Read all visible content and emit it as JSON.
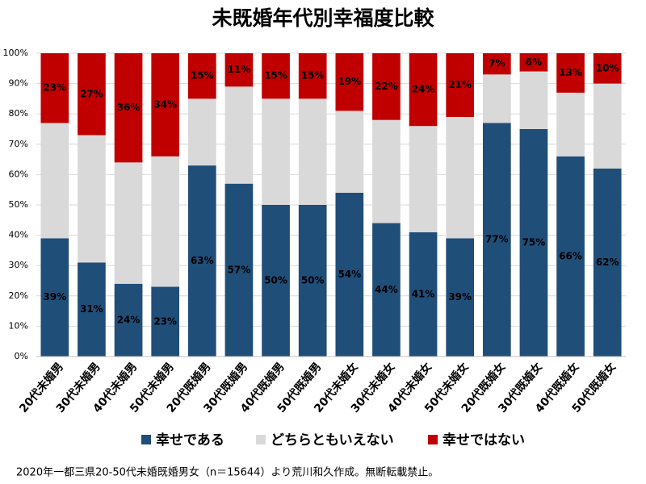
{
  "chart_data": {
    "type": "stacked_bar_percent",
    "title": "未既婚年代別幸福度比較",
    "categories": [
      "20代未婚男",
      "30代未婚男",
      "40代未婚男",
      "50代未婚男",
      "20代既婚男",
      "30代既婚男",
      "40代既婚男",
      "50代既婚男",
      "20代未婚女",
      "30代未婚女",
      "40代未婚女",
      "50代未婚女",
      "20代既婚女",
      "30代既婚女",
      "40代既婚女",
      "50代既婚女"
    ],
    "series": [
      {
        "name": "幸せである",
        "color": "#1f4e79",
        "values": [
          39,
          31,
          24,
          23,
          63,
          57,
          50,
          50,
          54,
          44,
          41,
          39,
          77,
          75,
          66,
          62
        ],
        "value_labels": [
          "39%",
          "31%",
          "24%",
          "23%",
          "63%",
          "57%",
          "50%",
          "50%",
          "54%",
          "44%",
          "41%",
          "39%",
          "77%",
          "75%",
          "66%",
          "62%"
        ]
      },
      {
        "name": "どちらともいえない",
        "color": "#d9d9d9",
        "values": [
          38,
          42,
          40,
          43,
          22,
          32,
          35,
          35,
          27,
          34,
          35,
          40,
          16,
          19,
          21,
          28
        ]
      },
      {
        "name": "幸せではない",
        "color": "#c00000",
        "values": [
          23,
          27,
          36,
          34,
          15,
          11,
          15,
          15,
          19,
          22,
          24,
          21,
          7,
          6,
          13,
          10
        ],
        "value_labels": [
          "23%",
          "27%",
          "36%",
          "34%",
          "15%",
          "11%",
          "15%",
          "15%",
          "19%",
          "22%",
          "24%",
          "21%",
          "7%",
          "6%",
          "13%",
          "10%"
        ]
      }
    ],
    "ylim": [
      0,
      100
    ],
    "yticks": [
      {
        "value": 0,
        "label": "0%"
      },
      {
        "value": 10,
        "label": "10%"
      },
      {
        "value": 20,
        "label": "20%"
      },
      {
        "value": 30,
        "label": "30%"
      },
      {
        "value": 40,
        "label": "40%"
      },
      {
        "value": 50,
        "label": "50%"
      },
      {
        "value": 60,
        "label": "60%"
      },
      {
        "value": 70,
        "label": "70%"
      },
      {
        "value": 80,
        "label": "80%"
      },
      {
        "value": 90,
        "label": "90%"
      },
      {
        "value": 100,
        "label": "100%"
      }
    ],
    "grid": true,
    "legend": "bottom",
    "footnote": "2020年一都三県20-50代未婚既婚男女（n＝15644）より荒川和久作成。無断転載禁止。"
  }
}
